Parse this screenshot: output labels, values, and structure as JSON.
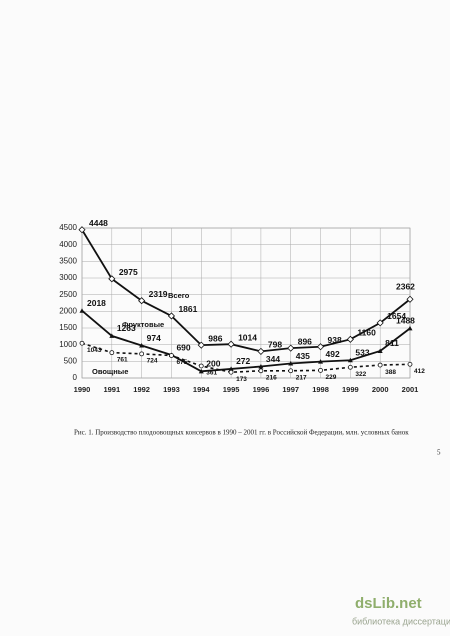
{
  "chart_data": {
    "type": "line",
    "categories": [
      "1990",
      "1991",
      "1992",
      "1993",
      "1994",
      "1995",
      "1996",
      "1997",
      "1998",
      "1999",
      "2000",
      "2001"
    ],
    "series": [
      {
        "name": "Всего",
        "color": "#111111",
        "line_style": "solid",
        "marker": "diamond",
        "values": [
          4448,
          2975,
          2319,
          1861,
          986,
          1014,
          798,
          896,
          938,
          1160,
          1654,
          2362
        ]
      },
      {
        "name": "Фруктовые",
        "color": "#111111",
        "line_style": "solid",
        "marker": "triangle",
        "values": [
          2018,
          1263,
          974,
          690,
          200,
          272,
          344,
          435,
          492,
          533,
          811,
          1488
        ]
      },
      {
        "name": "Овощные",
        "color": "#111111",
        "line_style": "dashed",
        "marker": "circle",
        "values": [
          1043,
          761,
          724,
          675,
          361,
          173,
          216,
          217,
          229,
          322,
          388,
          412
        ]
      }
    ],
    "ylim": [
      0,
      4500
    ],
    "yticks": [
      0,
      500,
      1000,
      1500,
      2000,
      2500,
      3000,
      3500,
      4000,
      4500
    ],
    "grid": true
  },
  "caption": "Рис. 1. Производство плодоовощных консервов в 1990 – 2001 гг. в Российской Федерации, млн. условных банок",
  "page_number": "5",
  "watermark": {
    "site": "dsLib.net",
    "subtitle": "библиотека диссертаций"
  }
}
